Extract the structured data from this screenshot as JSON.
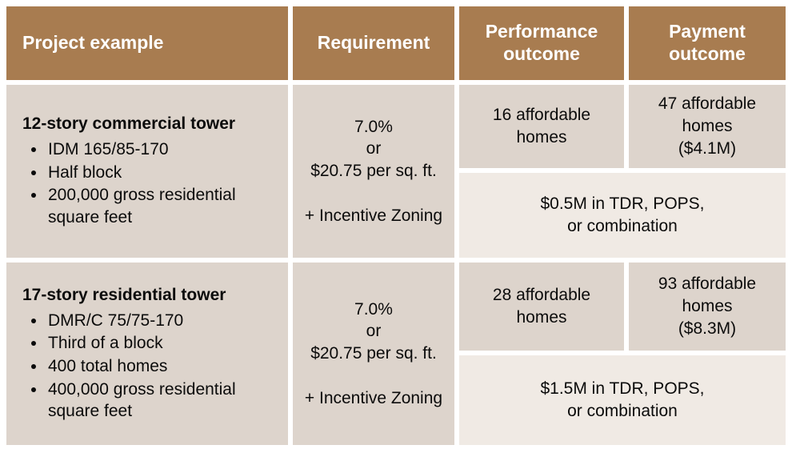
{
  "colors": {
    "header_background": "#a87c50",
    "header_text": "#ffffff",
    "cell_background": "#ddd4cc",
    "merged_cell_background": "#f0eae4",
    "body_text": "#0b0b0b",
    "gutter": "#ffffff"
  },
  "table": {
    "headers": [
      "Project example",
      "Requirement",
      "Performance outcome",
      "Payment outcome"
    ],
    "rows": [
      {
        "title": "12-story commercial tower",
        "bullets": [
          "IDM 165/85-170",
          "Half block",
          "200,000 gross residential square feet"
        ],
        "requirement": "7.0%\nor\n$20.75 per sq. ft.\n\n+ Incentive Zoning",
        "performance": "16 affordable\nhomes",
        "payment": "47 affordable homes\n($4.1M)",
        "combined": "$0.5M in TDR, POPS,\nor combination"
      },
      {
        "title": "17-story residential tower",
        "bullets": [
          "DMR/C 75/75-170",
          "Third of a block",
          "400 total homes",
          "400,000 gross residential square feet"
        ],
        "requirement": "7.0%\nor\n$20.75 per sq. ft.\n\n+ Incentive Zoning",
        "performance": "28 affordable\nhomes",
        "payment": "93 affordable homes\n($8.3M)",
        "combined": "$1.5M in TDR, POPS,\nor combination"
      }
    ]
  }
}
